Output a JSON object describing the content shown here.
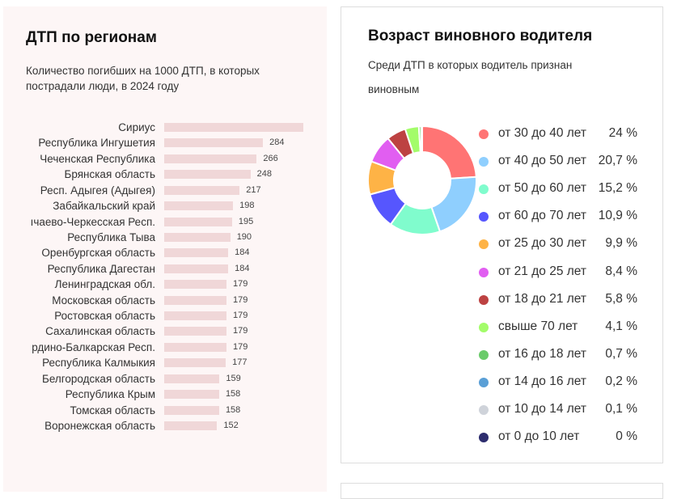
{
  "left": {
    "title": "ДТП по регионам",
    "subtitle": "Количество погибших на 1000 ДТП, в которых пострадали люди, в 2024 году"
  },
  "right": {
    "title": "Возраст виновного водителя",
    "subtitle": "Среди ДТП в которых водитель признан виновным"
  },
  "chart_data": [
    {
      "type": "bar",
      "orientation": "horizontal",
      "title": "ДТП по регионам",
      "subtitle": "Количество погибших на 1000 ДТП, в которых пострадали люди, в 2024 году",
      "bar_color": "#f0d7d8",
      "categories": [
        "Сириус",
        "Республика Ингушетия",
        "Чеченская Республика",
        "Брянская область",
        "Респ. Адыгея (Адыгея)",
        "Забайкальский край",
        "ıчаево-Черкесская Респ.",
        "Республика Тыва",
        "Оренбургская область",
        "Республика Дагестан",
        "Ленинградская обл.",
        "Московская область",
        "Ростовская область",
        "Сахалинская область",
        "рдино-Балкарская Респ.",
        "Республика Калмыкия",
        "Белгородская область",
        "Республика Крым",
        "Томская область",
        "Воронежская область"
      ],
      "values": [
        400,
        284,
        266,
        248,
        217,
        198,
        195,
        190,
        184,
        184,
        179,
        179,
        179,
        179,
        179,
        177,
        159,
        158,
        158,
        152
      ],
      "labels": [
        "",
        "284",
        "266",
        "248",
        "217",
        "198",
        "195",
        "190",
        "184",
        "184",
        "179",
        "179",
        "179",
        "179",
        "179",
        "177",
        "159",
        "158",
        "158",
        "152"
      ]
    },
    {
      "type": "pie",
      "donut": true,
      "title": "Возраст виновного водителя",
      "categories": [
        "от 30 до 40 лет",
        "от 40 до 50 лет",
        "от 50 до 60 лет",
        "от 60 до 70 лет",
        "от 25 до 30 лет",
        "от 21 до 25 лет",
        "от 18 до 21 лет",
        "свыше 70 лет",
        "от 16 до 18 лет",
        "от 14 до 16 лет",
        "от 10 до 14 лет",
        "от 0 до 10 лет"
      ],
      "values": [
        24,
        20.7,
        15.2,
        10.9,
        9.9,
        8.4,
        5.8,
        4.1,
        0.7,
        0.2,
        0.1,
        0
      ],
      "labels": [
        "24 %",
        "20,7 %",
        "15,2 %",
        "10,9 %",
        "9,9 %",
        "8,4 %",
        "5,8 %",
        "4,1 %",
        "0,7 %",
        "0,2 %",
        "0,1 %",
        "0 %"
      ],
      "colors": [
        "#ff7474",
        "#8fcffe",
        "#80fccd",
        "#5656fe",
        "#feb346",
        "#e15ef1",
        "#bd4242",
        "#a3fc6a",
        "#6acb6a",
        "#5a9fd6",
        "#cfd3da",
        "#2d2d6e"
      ],
      "legend": "right"
    }
  ]
}
